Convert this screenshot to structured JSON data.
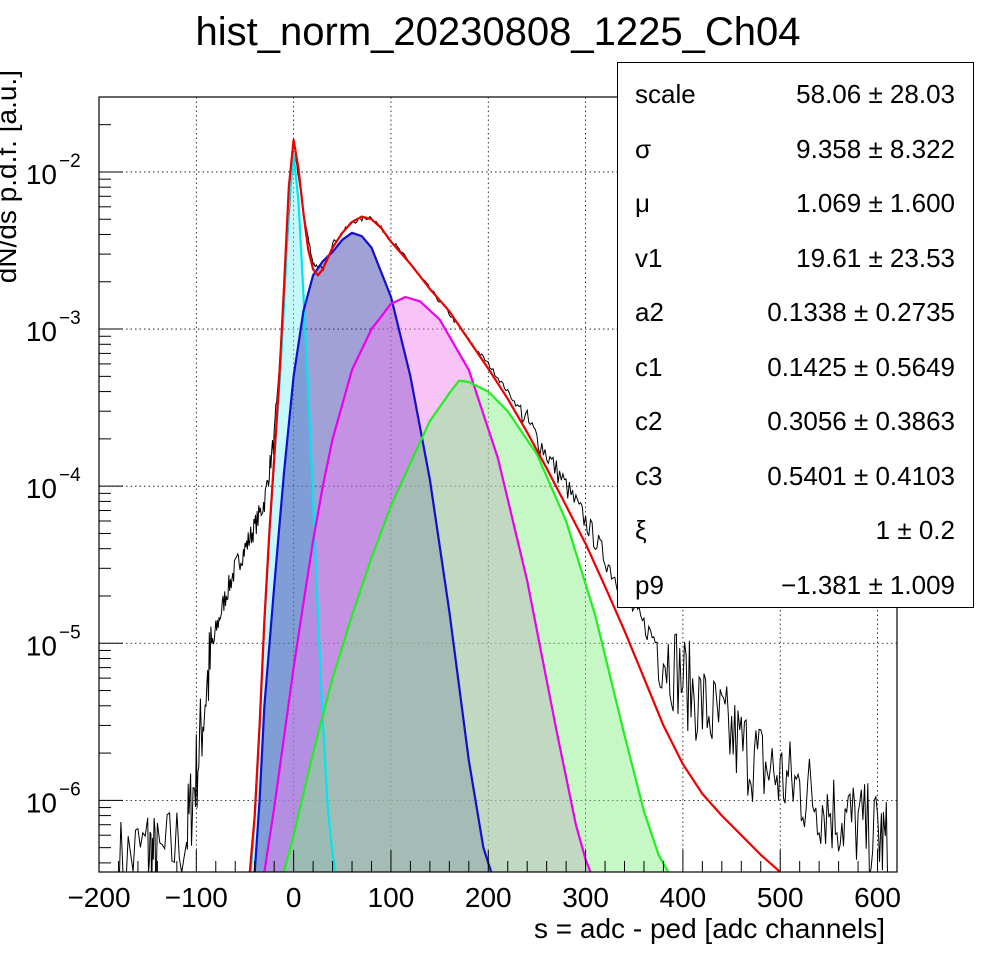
{
  "chart_data": {
    "type": "line",
    "title": "hist_norm_20230808_1225_Ch04",
    "xlabel": "s = adc - ped [adc channels]",
    "ylabel": "dN/ds p.d.f. [a.u.]",
    "xlim": [
      -200,
      620
    ],
    "ylim": [
      3.5e-07,
      0.03
    ],
    "yscale": "log",
    "grid": true,
    "x_ticks": [
      -200,
      -100,
      0,
      100,
      200,
      300,
      400,
      500,
      600
    ],
    "x_tick_labels": [
      "−200",
      "−100",
      "0",
      "100",
      "200",
      "300",
      "400",
      "500",
      "600"
    ],
    "y_ticks": [
      1e-06,
      1e-05,
      0.0001,
      0.001,
      0.01
    ],
    "y_tick_labels": [
      {
        "mantissa": "10",
        "exp": "−6"
      },
      {
        "mantissa": "10",
        "exp": "−5"
      },
      {
        "mantissa": "10",
        "exp": "−4"
      },
      {
        "mantissa": "10",
        "exp": "−3"
      },
      {
        "mantissa": "10",
        "exp": "−2"
      }
    ],
    "components": [
      {
        "color": "#00e5ee",
        "fill": "#7ef0f5",
        "hatch": "left",
        "x": [
          -44,
          -40,
          -35,
          -30,
          -25,
          -20,
          -15,
          -10,
          -5,
          0,
          5,
          10,
          15,
          20,
          25,
          30,
          35,
          40,
          43
        ],
        "y": [
          3.5e-07,
          8e-07,
          3e-06,
          1.4e-05,
          5e-05,
          0.00015,
          0.0004,
          0.0014,
          0.006,
          0.013,
          0.0065,
          0.0017,
          0.0004,
          8e-05,
          1.5e-05,
          3.2e-06,
          9e-07,
          4.5e-07,
          3.5e-07
        ]
      },
      {
        "color": "#1010cc",
        "fill": "#3333aa",
        "hatch": "right",
        "x": [
          -40,
          -35,
          -30,
          -20,
          -10,
          0,
          10,
          20,
          30,
          40,
          50,
          60,
          70,
          80,
          100,
          120,
          140,
          160,
          180,
          195,
          203
        ],
        "y": [
          3.5e-07,
          1e-06,
          4e-06,
          2.3e-05,
          0.00012,
          0.0005,
          0.0013,
          0.0022,
          0.0027,
          0.0031,
          0.0037,
          0.0041,
          0.0039,
          0.0033,
          0.0016,
          0.0005,
          0.00011,
          1.6e-05,
          1.8e-06,
          5e-07,
          3.5e-07
        ]
      },
      {
        "color": "#ee00ee",
        "fill": "#f07ef0",
        "hatch": "left",
        "x": [
          -30,
          -20,
          -10,
          0,
          10,
          20,
          30,
          40,
          60,
          80,
          100,
          115,
          130,
          150,
          180,
          210,
          240,
          270,
          290,
          300,
          305
        ],
        "y": [
          3.5e-07,
          9e-07,
          2.5e-06,
          7e-06,
          1.8e-05,
          4.5e-05,
          0.0001,
          0.0002,
          0.00055,
          0.001,
          0.00145,
          0.0016,
          0.0015,
          0.00115,
          0.00055,
          0.00015,
          2.5e-05,
          2.8e-06,
          7e-07,
          4.2e-07,
          3.5e-07
        ]
      },
      {
        "color": "#22ee22",
        "fill": "#80f080",
        "hatch": "right",
        "x": [
          -10,
          0,
          20,
          40,
          60,
          80,
          100,
          120,
          140,
          160,
          170,
          180,
          200,
          220,
          250,
          280,
          310,
          340,
          360,
          375,
          385
        ],
        "y": [
          3.5e-07,
          6e-07,
          2e-06,
          6e-06,
          1.5e-05,
          3.5e-05,
          7.5e-05,
          0.00014,
          0.00026,
          0.00039,
          0.00047,
          0.00046,
          0.0004,
          0.0003,
          0.00016,
          6e-05,
          1.5e-05,
          2.6e-06,
          8.5e-07,
          4.5e-07,
          3.5e-07
        ]
      },
      {
        "color": "#ee0000",
        "fill": "none",
        "hatch": "none",
        "x": [
          -45,
          -40,
          -35,
          -30,
          -25,
          -20,
          -15,
          -10,
          -5,
          0,
          5,
          10,
          15,
          20,
          25,
          30,
          40,
          50,
          60,
          70,
          80,
          90,
          100,
          120,
          140,
          160,
          180,
          200,
          220,
          240,
          260,
          280,
          300,
          320,
          340,
          360,
          380,
          400,
          420,
          440,
          460,
          480,
          500
        ],
        "y": [
          3.5e-07,
          8e-07,
          3e-06,
          1.4e-05,
          5e-05,
          0.00015,
          0.00045,
          0.0018,
          0.008,
          0.016,
          0.0105,
          0.0055,
          0.0032,
          0.0024,
          0.0022,
          0.0024,
          0.0033,
          0.0041,
          0.0048,
          0.0052,
          0.005,
          0.0044,
          0.0036,
          0.0026,
          0.0018,
          0.0013,
          0.00085,
          0.00056,
          0.00036,
          0.00022,
          0.00013,
          7.5e-05,
          4.3e-05,
          2.3e-05,
          1.2e-05,
          6e-06,
          3e-06,
          1.7e-06,
          1.1e-06,
          8e-07,
          6e-07,
          4.5e-07,
          3.5e-07
        ]
      }
    ],
    "data_trace_x": [
      -180,
      -150,
      -140,
      -110,
      -100,
      -90,
      -80,
      -70,
      -60,
      -50,
      -40,
      -30,
      -20,
      -10,
      0,
      10,
      20,
      30,
      40,
      60,
      80,
      100,
      120,
      140,
      160,
      180,
      200,
      220,
      240,
      260,
      280,
      300,
      320,
      340,
      360,
      380,
      400,
      420,
      440,
      460,
      480,
      500,
      520,
      540,
      560,
      580,
      600,
      612
    ],
    "data_trace_y": [
      4e-07,
      5e-07,
      4e-07,
      6e-07,
      1.5e-06,
      5e-06,
      1.2e-05,
      2e-05,
      3e-05,
      4e-05,
      5.5e-05,
      8e-05,
      0.0002,
      0.0015,
      0.0155,
      0.0055,
      0.0026,
      0.0024,
      0.0035,
      0.0048,
      0.0052,
      0.0037,
      0.0026,
      0.0018,
      0.00125,
      0.00085,
      0.0006,
      0.0004,
      0.00026,
      0.00016,
      0.0001,
      6e-05,
      3.5e-05,
      2e-05,
      1.3e-05,
      9e-06,
      6e-06,
      4e-06,
      3e-06,
      2.2e-06,
      1.7e-06,
      1.4e-06,
      1.2e-06,
      1e-06,
      8e-07,
      7e-07,
      6e-07,
      5e-07
    ],
    "data_trace_color": "#000000"
  },
  "stats": [
    {
      "name": "scale",
      "value": "58.06",
      "pm": "±",
      "err": "28.03"
    },
    {
      "name": "σ",
      "value": "9.358",
      "pm": "±",
      "err": "8.322"
    },
    {
      "name": "μ",
      "value": "1.069",
      "pm": "±",
      "err": "1.600"
    },
    {
      "name": "v1",
      "value": "19.61",
      "pm": "±",
      "err": "23.53"
    },
    {
      "name": "a2",
      "value": "0.1338",
      "pm": "±",
      "err": "0.2735"
    },
    {
      "name": "c1",
      "value": "0.1425",
      "pm": "±",
      "err": "0.5649"
    },
    {
      "name": "c2",
      "value": "0.3056",
      "pm": "±",
      "err": "0.3863"
    },
    {
      "name": "c3",
      "value": "0.5401",
      "pm": "±",
      "err": "0.4103"
    },
    {
      "name": "ξ",
      "value": "1",
      "pm": "±",
      "err": "0.2"
    },
    {
      "name": "p9",
      "value": "−1.381",
      "pm": "±",
      "err": "1.009"
    }
  ]
}
